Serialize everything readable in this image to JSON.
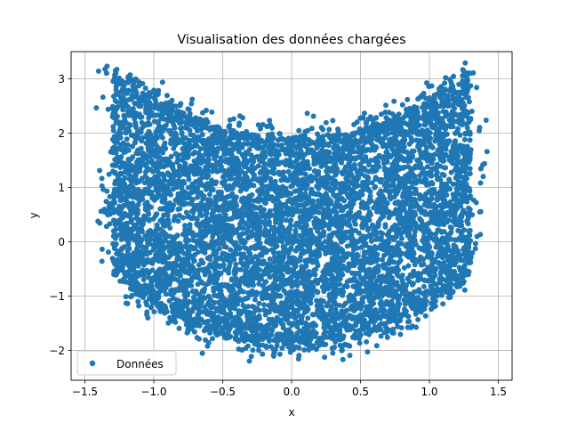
{
  "chart_data": {
    "type": "scatter",
    "title": "Visualisation des données chargées",
    "xlabel": "x",
    "ylabel": "y",
    "xlim": [
      -1.6,
      1.6
    ],
    "ylim": [
      -2.55,
      3.5
    ],
    "xticks": [
      -1.5,
      -1.0,
      -0.5,
      0.0,
      0.5,
      1.0,
      1.5
    ],
    "xtick_labels": [
      "−1.5",
      "−1.0",
      "−0.5",
      "0.0",
      "0.5",
      "1.0",
      "1.5"
    ],
    "yticks": [
      -2,
      -1,
      0,
      1,
      2,
      3
    ],
    "ytick_labels": [
      "−2",
      "−1",
      "0",
      "1",
      "2",
      "3"
    ],
    "grid": true,
    "legend": {
      "position": "lower-left",
      "entries": [
        "Données"
      ]
    },
    "series": [
      {
        "name": "Données",
        "color": "#1f77b4",
        "point_count": 7000,
        "distribution": "crescent / U-shaped band; upper edge rises from about 1.9 at x=0 to about 3.0 near x=±1.1, lower edge from about -1.9 at x=0 to about -0.6 near x=±1.2, x extent about -1.45 to 1.45"
      }
    ]
  }
}
